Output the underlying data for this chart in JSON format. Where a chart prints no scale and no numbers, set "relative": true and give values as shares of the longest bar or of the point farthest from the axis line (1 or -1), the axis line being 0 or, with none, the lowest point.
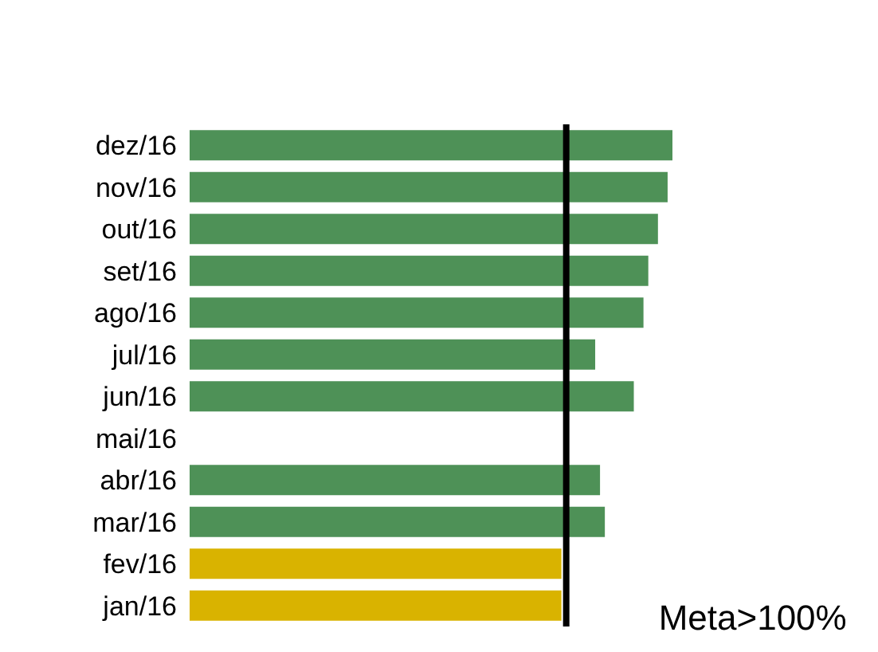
{
  "chart_data": {
    "type": "bar",
    "orientation": "horizontal",
    "relative": true,
    "categories": [
      "dez/16",
      "nov/16",
      "out/16",
      "set/16",
      "ago/16",
      "jul/16",
      "jun/16",
      "mai/16",
      "abr/16",
      "mar/16",
      "fev/16",
      "jan/16"
    ],
    "values": [
      1,
      0.99,
      0.97,
      0.95,
      0.94,
      0.84,
      0.92,
      null,
      0.85,
      0.86,
      0.77,
      0.77
    ],
    "colors": [
      "#4e9157",
      "#4e9157",
      "#4e9157",
      "#4e9157",
      "#4e9157",
      "#4e9157",
      "#4e9157",
      "#4e9157",
      "#4e9157",
      "#4e9157",
      "#d9b300",
      "#d9b300"
    ],
    "ref_lines": [
      {
        "axis": "x",
        "value": 0.78,
        "label": "Meta>100%",
        "color": "#000000"
      }
    ]
  }
}
